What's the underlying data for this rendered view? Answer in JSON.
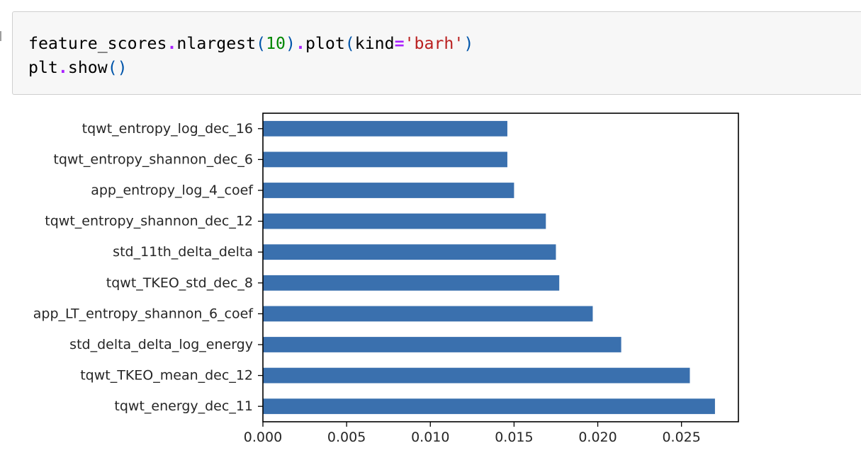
{
  "code_cell": {
    "lines": [
      [
        {
          "text": "feature_scores",
          "cls": "tok-name"
        },
        {
          "text": ".",
          "cls": "tok-op"
        },
        {
          "text": "nlargest",
          "cls": "tok-name"
        },
        {
          "text": "(",
          "cls": "tok-paren"
        },
        {
          "text": "10",
          "cls": "tok-num"
        },
        {
          "text": ")",
          "cls": "tok-paren"
        },
        {
          "text": ".",
          "cls": "tok-op"
        },
        {
          "text": "plot",
          "cls": "tok-name"
        },
        {
          "text": "(",
          "cls": "tok-paren"
        },
        {
          "text": "kind",
          "cls": "tok-name"
        },
        {
          "text": "=",
          "cls": "tok-op"
        },
        {
          "text": "'barh'",
          "cls": "tok-str"
        },
        {
          "text": ")",
          "cls": "tok-paren"
        }
      ],
      [
        {
          "text": "plt",
          "cls": "tok-name"
        },
        {
          "text": ".",
          "cls": "tok-op"
        },
        {
          "text": "show",
          "cls": "tok-name"
        },
        {
          "text": "()",
          "cls": "tok-paren"
        }
      ]
    ]
  },
  "chart_data": {
    "type": "bar",
    "orientation": "horizontal",
    "title": "",
    "xlabel": "",
    "ylabel": "",
    "xlim": [
      0,
      0.0284
    ],
    "grid": false,
    "bar_color": "#3a70ae",
    "categories": [
      "tqwt_energy_dec_11",
      "tqwt_TKEO_mean_dec_12",
      "std_delta_delta_log_energy",
      "app_LT_entropy_shannon_6_coef",
      "tqwt_TKEO_std_dec_8",
      "std_11th_delta_delta",
      "tqwt_entropy_shannon_dec_12",
      "app_entropy_log_4_coef",
      "tqwt_entropy_shannon_dec_6",
      "tqwt_entropy_log_dec_16"
    ],
    "values": [
      0.027,
      0.0255,
      0.0214,
      0.0197,
      0.0177,
      0.0175,
      0.0169,
      0.015,
      0.0146,
      0.0146
    ],
    "xticks": [
      0.0,
      0.005,
      0.01,
      0.015,
      0.02,
      0.025
    ],
    "xtick_labels": [
      "0.000",
      "0.005",
      "0.010",
      "0.015",
      "0.020",
      "0.025"
    ]
  }
}
